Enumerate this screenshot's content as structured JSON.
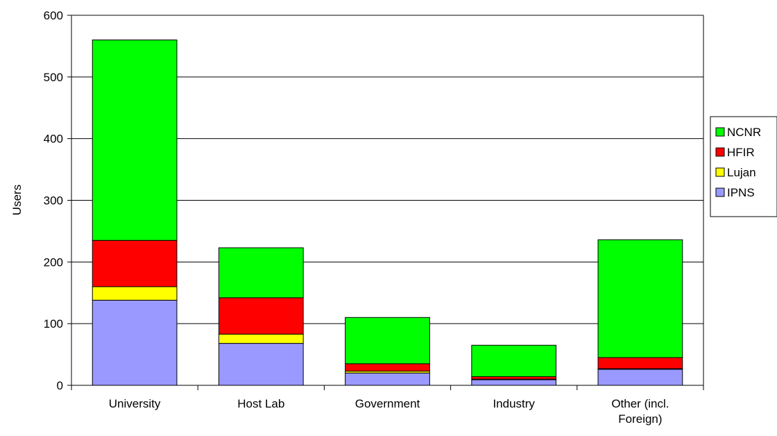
{
  "chart_data": {
    "type": "bar",
    "stacked": true,
    "title": "",
    "xlabel": "",
    "ylabel": "Users",
    "ylim": [
      0,
      600
    ],
    "yticks": [
      0,
      100,
      200,
      300,
      400,
      500,
      600
    ],
    "grid": "horizontal",
    "legend_position": "right",
    "categories": [
      "University",
      "Host Lab",
      "Government",
      "Industry",
      "Other (incl. Foreign)"
    ],
    "series": [
      {
        "name": "IPNS",
        "color": "#9999ff",
        "values": [
          138,
          68,
          20,
          9,
          26
        ]
      },
      {
        "name": "Lujan",
        "color": "#ffff00",
        "values": [
          22,
          15,
          3,
          1,
          1
        ]
      },
      {
        "name": "HFIR",
        "color": "#ff0000",
        "values": [
          75,
          59,
          12,
          4,
          18
        ]
      },
      {
        "name": "NCNR",
        "color": "#00ff00",
        "values": [
          325,
          81,
          75,
          51,
          191
        ]
      }
    ]
  }
}
